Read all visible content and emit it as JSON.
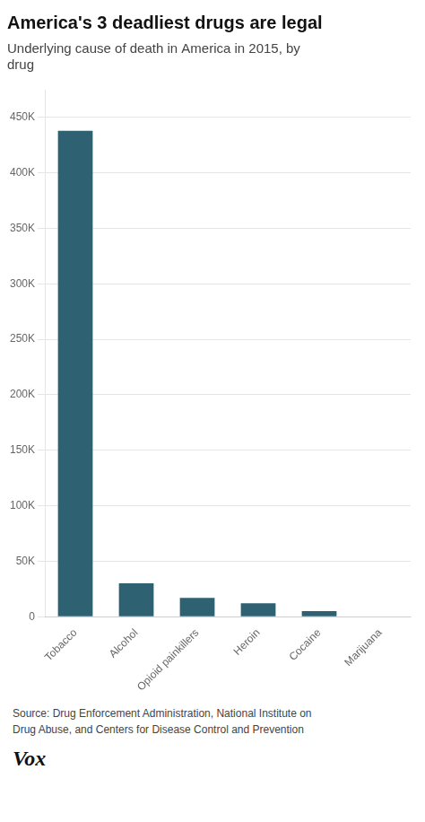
{
  "chart_data": {
    "type": "bar",
    "title": "America's 3 deadliest drugs are legal",
    "subtitle": "Underlying cause of death in America in 2015, by\ndrug",
    "categories": [
      "Tobacco",
      "Alcohol",
      "Opioid painkillers",
      "Heroin",
      "Cocaine",
      "Marijuana"
    ],
    "values": [
      438000,
      30000,
      17000,
      12000,
      5000,
      0
    ],
    "color": "#2e6272",
    "ylim": [
      0,
      475000
    ],
    "yticks": [
      0,
      {
        "value": 50000,
        "label": "50K"
      },
      {
        "value": 100000,
        "label": "100K"
      },
      {
        "value": 150000,
        "label": "150K"
      },
      {
        "value": 200000,
        "label": "200K"
      },
      {
        "value": 250000,
        "label": "250K"
      },
      {
        "value": 300000,
        "label": "300K"
      },
      {
        "value": 350000,
        "label": "350K"
      },
      {
        "value": 400000,
        "label": "400K"
      },
      {
        "value": 450000,
        "label": "450K"
      }
    ],
    "grid": true,
    "annotations": [
      "Source: Drug Enforcement Administration, National Institute on\nDrug Abuse, and Centers for Disease Control and Prevention",
      "Vox"
    ]
  }
}
